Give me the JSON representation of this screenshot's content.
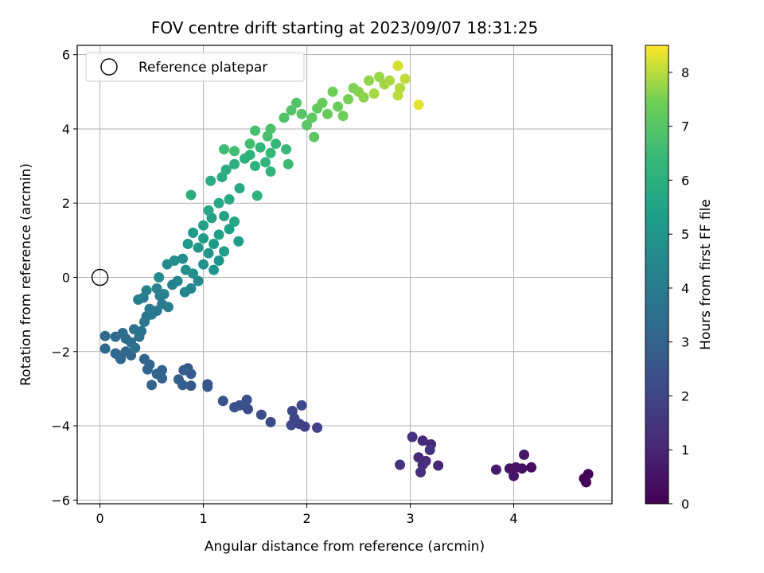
{
  "chart_data": {
    "type": "scatter",
    "title": "FOV centre drift starting at 2023/09/07 18:31:25",
    "xlabel": "Angular distance from reference (arcmin)",
    "ylabel": "Rotation from reference (arcmin)",
    "xlim": [
      -0.22,
      4.95
    ],
    "ylim": [
      -6.1,
      6.25
    ],
    "xticks": [
      0,
      1,
      2,
      3,
      4
    ],
    "yticks": [
      -6,
      -4,
      -2,
      0,
      2,
      4,
      6
    ],
    "grid": true,
    "legend": {
      "position": "top-left",
      "entries": [
        "Reference platepar"
      ]
    },
    "reference_point": {
      "x": 0,
      "y": 0,
      "label": "Reference platepar",
      "marker": "open-circle"
    },
    "colorbar": {
      "label": "Hours from first FF file",
      "range": [
        0,
        8.5
      ],
      "ticks": [
        0,
        1,
        2,
        3,
        4,
        5,
        6,
        7,
        8
      ],
      "colormap": "viridis"
    },
    "series": [
      {
        "points": [
          {
            "x": 4.72,
            "y": -5.3,
            "t": 0.05
          },
          {
            "x": 4.68,
            "y": -5.42,
            "t": 0.1
          },
          {
            "x": 4.7,
            "y": -5.52,
            "t": 0.15
          },
          {
            "x": 4.17,
            "y": -5.12,
            "t": 0.35
          },
          {
            "x": 4.08,
            "y": -5.15,
            "t": 0.4
          },
          {
            "x": 4.02,
            "y": -5.12,
            "t": 0.45
          },
          {
            "x": 3.96,
            "y": -5.15,
            "t": 0.5
          },
          {
            "x": 4.0,
            "y": -5.35,
            "t": 0.55
          },
          {
            "x": 4.1,
            "y": -4.78,
            "t": 0.6
          },
          {
            "x": 3.83,
            "y": -5.18,
            "t": 0.7
          },
          {
            "x": 3.27,
            "y": -5.07,
            "t": 1.0
          },
          {
            "x": 3.2,
            "y": -4.5,
            "t": 1.05
          },
          {
            "x": 3.12,
            "y": -4.4,
            "t": 1.1
          },
          {
            "x": 3.08,
            "y": -4.85,
            "t": 1.15
          },
          {
            "x": 3.15,
            "y": -4.95,
            "t": 1.2
          },
          {
            "x": 3.12,
            "y": -5.05,
            "t": 1.25
          },
          {
            "x": 3.1,
            "y": -5.25,
            "t": 1.3
          },
          {
            "x": 3.02,
            "y": -4.3,
            "t": 1.35
          },
          {
            "x": 2.9,
            "y": -5.05,
            "t": 1.4
          },
          {
            "x": 3.19,
            "y": -4.65,
            "t": 1.45
          },
          {
            "x": 2.1,
            "y": -4.05,
            "t": 1.85
          },
          {
            "x": 1.98,
            "y": -4.02,
            "t": 1.9
          },
          {
            "x": 1.93,
            "y": -3.95,
            "t": 1.95
          },
          {
            "x": 1.88,
            "y": -3.8,
            "t": 2.0
          },
          {
            "x": 1.85,
            "y": -3.98,
            "t": 2.05
          },
          {
            "x": 1.86,
            "y": -3.6,
            "t": 2.1
          },
          {
            "x": 1.95,
            "y": -3.45,
            "t": 2.15
          },
          {
            "x": 1.65,
            "y": -3.9,
            "t": 2.2
          },
          {
            "x": 1.56,
            "y": -3.7,
            "t": 2.25
          },
          {
            "x": 1.43,
            "y": -3.55,
            "t": 2.3
          },
          {
            "x": 1.42,
            "y": -3.3,
            "t": 2.35
          },
          {
            "x": 1.35,
            "y": -3.45,
            "t": 2.4
          },
          {
            "x": 1.3,
            "y": -3.5,
            "t": 2.45
          },
          {
            "x": 1.19,
            "y": -3.33,
            "t": 2.5
          },
          {
            "x": 1.04,
            "y": -2.88,
            "t": 2.55
          },
          {
            "x": 1.04,
            "y": -2.95,
            "t": 2.6
          },
          {
            "x": 0.88,
            "y": -2.92,
            "t": 2.65
          },
          {
            "x": 0.85,
            "y": -2.45,
            "t": 2.7
          },
          {
            "x": 0.88,
            "y": -2.6,
            "t": 2.75
          },
          {
            "x": 0.81,
            "y": -2.5,
            "t": 2.8
          },
          {
            "x": 0.8,
            "y": -2.9,
            "t": 2.85
          },
          {
            "x": 0.76,
            "y": -2.75,
            "t": 2.9
          },
          {
            "x": 0.6,
            "y": -2.72,
            "t": 2.95
          },
          {
            "x": 0.6,
            "y": -2.5,
            "t": 3.0
          },
          {
            "x": 0.55,
            "y": -2.6,
            "t": 3.02
          },
          {
            "x": 0.5,
            "y": -2.9,
            "t": 3.04
          },
          {
            "x": 0.48,
            "y": -2.35,
            "t": 3.06
          },
          {
            "x": 0.46,
            "y": -2.48,
            "t": 3.08
          },
          {
            "x": 0.43,
            "y": -2.2,
            "t": 3.1
          },
          {
            "x": 0.3,
            "y": -2.1,
            "t": 3.12
          },
          {
            "x": 0.25,
            "y": -2.0,
            "t": 3.14
          },
          {
            "x": 0.2,
            "y": -2.2,
            "t": 3.16
          },
          {
            "x": 0.18,
            "y": -2.1,
            "t": 3.18
          },
          {
            "x": 0.15,
            "y": -2.05,
            "t": 3.2
          },
          {
            "x": 0.05,
            "y": -1.92,
            "t": 3.22
          },
          {
            "x": 0.05,
            "y": -1.58,
            "t": 3.24
          },
          {
            "x": 0.15,
            "y": -1.6,
            "t": 3.3
          },
          {
            "x": 0.22,
            "y": -1.5,
            "t": 3.35
          },
          {
            "x": 0.25,
            "y": -1.65,
            "t": 3.4
          },
          {
            "x": 0.3,
            "y": -1.75,
            "t": 3.45
          },
          {
            "x": 0.34,
            "y": -1.9,
            "t": 3.5
          },
          {
            "x": 0.38,
            "y": -1.6,
            "t": 3.55
          },
          {
            "x": 0.4,
            "y": -1.45,
            "t": 3.6
          },
          {
            "x": 0.33,
            "y": -1.4,
            "t": 3.65
          },
          {
            "x": 0.43,
            "y": -1.2,
            "t": 3.7
          },
          {
            "x": 0.45,
            "y": -1.05,
            "t": 3.75
          },
          {
            "x": 0.5,
            "y": -1.0,
            "t": 3.8
          },
          {
            "x": 0.55,
            "y": -0.9,
            "t": 3.85
          },
          {
            "x": 0.48,
            "y": -0.85,
            "t": 3.9
          },
          {
            "x": 0.6,
            "y": -0.72,
            "t": 3.95
          },
          {
            "x": 0.66,
            "y": -0.8,
            "t": 4.0
          },
          {
            "x": 0.58,
            "y": -0.5,
            "t": 4.05
          },
          {
            "x": 0.42,
            "y": -0.55,
            "t": 4.1
          },
          {
            "x": 0.37,
            "y": -0.6,
            "t": 4.12
          },
          {
            "x": 0.45,
            "y": -0.35,
            "t": 4.15
          },
          {
            "x": 0.55,
            "y": -0.3,
            "t": 4.2
          },
          {
            "x": 0.62,
            "y": -0.45,
            "t": 4.25
          },
          {
            "x": 0.7,
            "y": -0.2,
            "t": 4.3
          },
          {
            "x": 0.75,
            "y": -0.1,
            "t": 4.35
          },
          {
            "x": 0.82,
            "y": -0.4,
            "t": 4.4
          },
          {
            "x": 0.88,
            "y": -0.3,
            "t": 4.45
          },
          {
            "x": 0.95,
            "y": -0.1,
            "t": 4.5
          },
          {
            "x": 0.57,
            "y": 0.0,
            "t": 4.55
          },
          {
            "x": 0.65,
            "y": 0.35,
            "t": 4.6
          },
          {
            "x": 0.72,
            "y": 0.45,
            "t": 4.65
          },
          {
            "x": 0.8,
            "y": 0.5,
            "t": 4.7
          },
          {
            "x": 0.83,
            "y": 0.2,
            "t": 4.75
          },
          {
            "x": 0.9,
            "y": 0.1,
            "t": 4.8
          },
          {
            "x": 1.0,
            "y": 0.35,
            "t": 4.85
          },
          {
            "x": 1.1,
            "y": 0.2,
            "t": 4.9
          },
          {
            "x": 1.15,
            "y": 0.45,
            "t": 4.95
          },
          {
            "x": 1.05,
            "y": 0.65,
            "t": 5.0
          },
          {
            "x": 0.95,
            "y": 0.8,
            "t": 5.05
          },
          {
            "x": 0.85,
            "y": 0.9,
            "t": 5.1
          },
          {
            "x": 0.9,
            "y": 1.2,
            "t": 5.15
          },
          {
            "x": 1.0,
            "y": 1.05,
            "t": 5.2
          },
          {
            "x": 1.1,
            "y": 0.9,
            "t": 5.25
          },
          {
            "x": 1.2,
            "y": 0.7,
            "t": 5.3
          },
          {
            "x": 1.34,
            "y": 0.97,
            "t": 5.33
          },
          {
            "x": 1.15,
            "y": 1.15,
            "t": 5.35
          },
          {
            "x": 1.25,
            "y": 1.3,
            "t": 5.4
          },
          {
            "x": 1.0,
            "y": 1.4,
            "t": 5.45
          },
          {
            "x": 1.08,
            "y": 1.6,
            "t": 5.5
          },
          {
            "x": 1.2,
            "y": 1.65,
            "t": 5.55
          },
          {
            "x": 1.3,
            "y": 1.5,
            "t": 5.6
          },
          {
            "x": 1.05,
            "y": 1.8,
            "t": 5.65
          },
          {
            "x": 1.15,
            "y": 2.0,
            "t": 5.7
          },
          {
            "x": 1.25,
            "y": 2.1,
            "t": 5.75
          },
          {
            "x": 1.35,
            "y": 2.4,
            "t": 5.8
          },
          {
            "x": 1.07,
            "y": 2.6,
            "t": 5.85
          },
          {
            "x": 1.18,
            "y": 2.7,
            "t": 5.9
          },
          {
            "x": 1.22,
            "y": 2.9,
            "t": 5.95
          },
          {
            "x": 0.88,
            "y": 2.22,
            "t": 5.98
          },
          {
            "x": 1.3,
            "y": 3.05,
            "t": 6.0
          },
          {
            "x": 1.4,
            "y": 3.2,
            "t": 6.05
          },
          {
            "x": 1.45,
            "y": 3.3,
            "t": 6.1
          },
          {
            "x": 1.52,
            "y": 2.2,
            "t": 6.12
          },
          {
            "x": 1.5,
            "y": 3.0,
            "t": 6.15
          },
          {
            "x": 1.6,
            "y": 3.1,
            "t": 6.2
          },
          {
            "x": 1.65,
            "y": 2.85,
            "t": 6.25
          },
          {
            "x": 1.55,
            "y": 3.5,
            "t": 6.3
          },
          {
            "x": 1.65,
            "y": 3.35,
            "t": 6.35
          },
          {
            "x": 1.7,
            "y": 3.6,
            "t": 6.4
          },
          {
            "x": 1.8,
            "y": 3.45,
            "t": 6.45
          },
          {
            "x": 1.82,
            "y": 3.05,
            "t": 6.5
          },
          {
            "x": 1.2,
            "y": 3.45,
            "t": 6.55
          },
          {
            "x": 1.3,
            "y": 3.4,
            "t": 6.6
          },
          {
            "x": 1.45,
            "y": 3.6,
            "t": 6.65
          },
          {
            "x": 1.5,
            "y": 3.95,
            "t": 6.7
          },
          {
            "x": 1.62,
            "y": 3.8,
            "t": 6.75
          },
          {
            "x": 1.65,
            "y": 4.0,
            "t": 6.8
          },
          {
            "x": 1.78,
            "y": 4.3,
            "t": 6.85
          },
          {
            "x": 1.85,
            "y": 4.5,
            "t": 6.9
          },
          {
            "x": 1.9,
            "y": 4.7,
            "t": 6.95
          },
          {
            "x": 1.95,
            "y": 4.4,
            "t": 7.0
          },
          {
            "x": 2.0,
            "y": 4.1,
            "t": 7.05
          },
          {
            "x": 2.07,
            "y": 3.78,
            "t": 7.1
          },
          {
            "x": 2.05,
            "y": 4.3,
            "t": 7.15
          },
          {
            "x": 2.1,
            "y": 4.55,
            "t": 7.2
          },
          {
            "x": 2.15,
            "y": 4.7,
            "t": 7.25
          },
          {
            "x": 2.2,
            "y": 4.4,
            "t": 7.3
          },
          {
            "x": 2.3,
            "y": 4.6,
            "t": 7.35
          },
          {
            "x": 2.35,
            "y": 4.35,
            "t": 7.4
          },
          {
            "x": 2.25,
            "y": 5.0,
            "t": 7.45
          },
          {
            "x": 2.4,
            "y": 4.8,
            "t": 7.5
          },
          {
            "x": 2.45,
            "y": 5.1,
            "t": 7.55
          },
          {
            "x": 2.5,
            "y": 5.0,
            "t": 7.6
          },
          {
            "x": 2.55,
            "y": 4.85,
            "t": 7.65
          },
          {
            "x": 2.6,
            "y": 5.3,
            "t": 7.7
          },
          {
            "x": 2.7,
            "y": 5.4,
            "t": 7.75
          },
          {
            "x": 2.75,
            "y": 5.2,
            "t": 7.8
          },
          {
            "x": 2.65,
            "y": 4.95,
            "t": 7.85
          },
          {
            "x": 2.8,
            "y": 5.3,
            "t": 7.9
          },
          {
            "x": 2.9,
            "y": 5.1,
            "t": 7.95
          },
          {
            "x": 2.88,
            "y": 4.9,
            "t": 8.0
          },
          {
            "x": 2.95,
            "y": 5.35,
            "t": 8.05
          },
          {
            "x": 2.88,
            "y": 5.7,
            "t": 8.2
          },
          {
            "x": 3.08,
            "y": 4.65,
            "t": 8.3
          }
        ]
      }
    ]
  }
}
